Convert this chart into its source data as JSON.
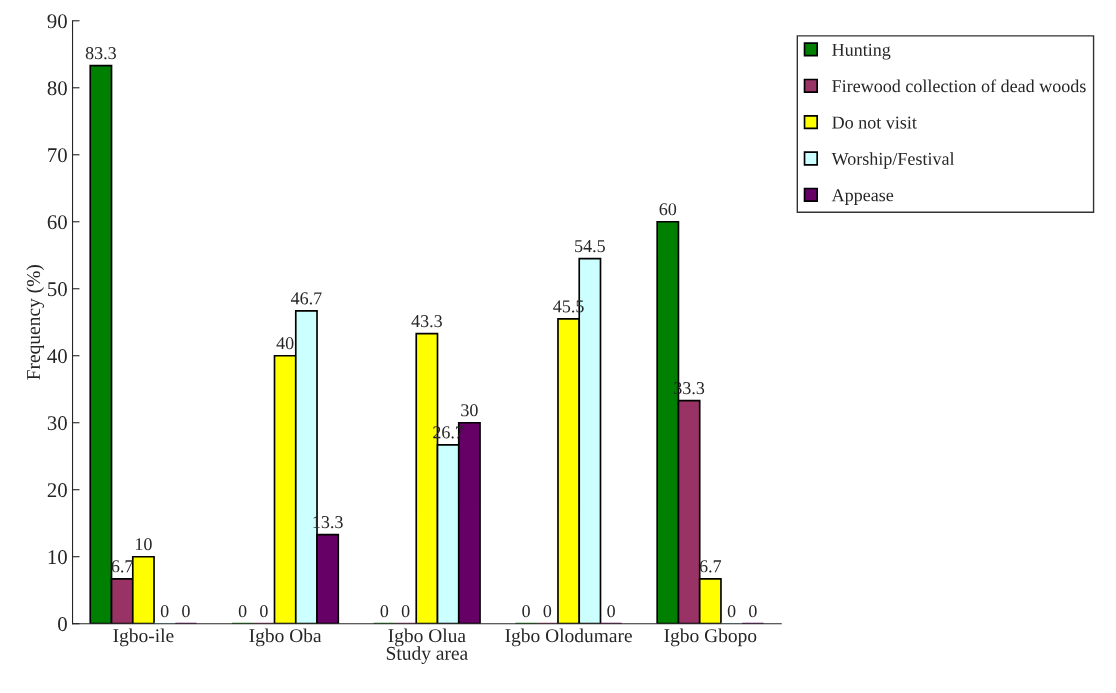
{
  "chart_data": {
    "type": "bar",
    "xlabel": "Study area",
    "ylabel": "Frequency (%)",
    "categories": [
      "Igbo-ile",
      "Igbo Oba",
      "Igbo Olua",
      "Igbo Olodumare",
      "Igbo Gbopo"
    ],
    "series": [
      {
        "name": "Hunting",
        "color": "#008000",
        "values": [
          83.3,
          0,
          0,
          0,
          60
        ]
      },
      {
        "name": "Firewood collection of dead woods",
        "color": "#993366",
        "values": [
          6.7,
          0,
          0,
          0,
          33.3
        ]
      },
      {
        "name": "Do not visit",
        "color": "#ffff00",
        "values": [
          10,
          40,
          43.3,
          45.5,
          6.7
        ]
      },
      {
        "name": "Worship/Festival",
        "color": "#ccffff",
        "values": [
          0,
          46.7,
          26.7,
          54.5,
          0
        ]
      },
      {
        "name": "Appease",
        "color": "#660066",
        "values": [
          0,
          13.3,
          30,
          0,
          0
        ]
      }
    ],
    "ylim": [
      0,
      90
    ],
    "yticks": [
      0,
      10,
      20,
      30,
      40,
      50,
      60,
      70,
      80,
      90
    ],
    "data_labels": true,
    "grid": false,
    "legend": "top right"
  }
}
